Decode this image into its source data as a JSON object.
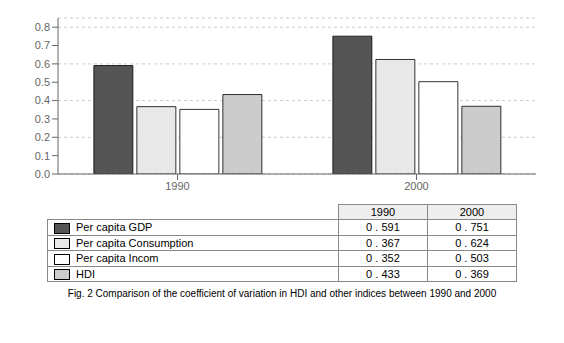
{
  "chart_data": {
    "type": "bar",
    "caption": "Fig. 2 Comparison of the coefficient of variation in HDI and other indices between 1990 and 2000",
    "categories": [
      "1990",
      "2000"
    ],
    "series": [
      {
        "name": "Per capita GDP",
        "color": "#555555",
        "values": [
          0.591,
          0.751
        ],
        "value_labels": [
          "0 . 591",
          "0 . 751"
        ]
      },
      {
        "name": "Per capita Consumption",
        "color": "#e8e8e8",
        "values": [
          0.367,
          0.624
        ],
        "value_labels": [
          "0 . 367",
          "0 . 624"
        ]
      },
      {
        "name": "Per capita Incom",
        "color": "#ffffff",
        "values": [
          0.352,
          0.503
        ],
        "value_labels": [
          "0 . 352",
          "0 . 503"
        ]
      },
      {
        "name": "HDI",
        "color": "#cccccc",
        "values": [
          0.433,
          0.369
        ],
        "value_labels": [
          "0 . 433",
          "0 . 369"
        ]
      }
    ],
    "ylim": [
      0.0,
      0.85
    ],
    "yticks": [
      {
        "value": 0,
        "label": "0.0"
      },
      0.1,
      0.2,
      0.3,
      0.4,
      0.5,
      0.6,
      0.7,
      0.8
    ],
    "grid": true
  }
}
